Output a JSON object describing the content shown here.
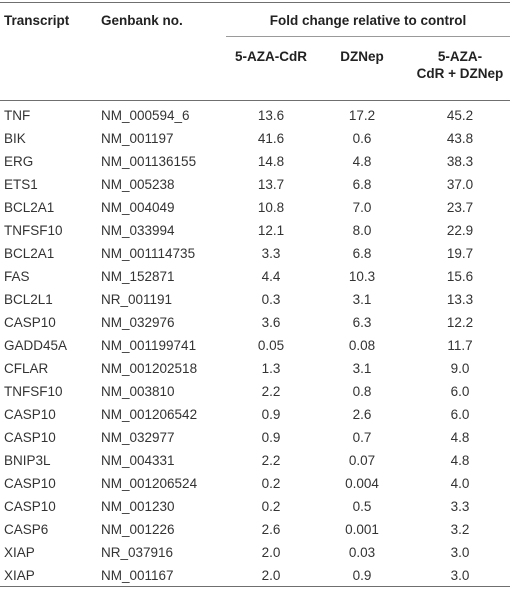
{
  "headers": {
    "transcript": "Transcript",
    "genbank": "Genbank no.",
    "fold_change": "Fold change relative to control",
    "aza": "5-AZA-CdR",
    "dznep": "DZNep",
    "combo_line1": "5-AZA-",
    "combo_line2": "CdR + DZNep"
  },
  "rows": [
    {
      "transcript": "TNF",
      "genbank": "NM_000594_6",
      "aza": "13.6",
      "dznep": "17.2",
      "combo": "45.2"
    },
    {
      "transcript": "BIK",
      "genbank": "NM_001197",
      "aza": "41.6",
      "dznep": "0.6",
      "combo": "43.8"
    },
    {
      "transcript": "ERG",
      "genbank": "NM_001136155",
      "aza": "14.8",
      "dznep": "4.8",
      "combo": "38.3"
    },
    {
      "transcript": "ETS1",
      "genbank": "NM_005238",
      "aza": "13.7",
      "dznep": "6.8",
      "combo": "37.0"
    },
    {
      "transcript": "BCL2A1",
      "genbank": "NM_004049",
      "aza": "10.8",
      "dznep": "7.0",
      "combo": "23.7"
    },
    {
      "transcript": "TNFSF10",
      "genbank": "NM_033994",
      "aza": "12.1",
      "dznep": "8.0",
      "combo": "22.9"
    },
    {
      "transcript": "BCL2A1",
      "genbank": "NM_001114735",
      "aza": "3.3",
      "dznep": "6.8",
      "combo": "19.7"
    },
    {
      "transcript": "FAS",
      "genbank": "NM_152871",
      "aza": "4.4",
      "dznep": "10.3",
      "combo": "15.6"
    },
    {
      "transcript": "BCL2L1",
      "genbank": "NR_001191",
      "aza": "0.3",
      "dznep": "3.1",
      "combo": "13.3"
    },
    {
      "transcript": "CASP10",
      "genbank": "NM_032976",
      "aza": "3.6",
      "dznep": "6.3",
      "combo": "12.2"
    },
    {
      "transcript": "GADD45A",
      "genbank": "NM_001199741",
      "aza": "0.05",
      "dznep": "0.08",
      "combo": "11.7"
    },
    {
      "transcript": "CFLAR",
      "genbank": "NM_001202518",
      "aza": "1.3",
      "dznep": "3.1",
      "combo": "9.0"
    },
    {
      "transcript": "TNFSF10",
      "genbank": "NM_003810",
      "aza": "2.2",
      "dznep": "0.8",
      "combo": "6.0"
    },
    {
      "transcript": "CASP10",
      "genbank": "NM_001206542",
      "aza": "0.9",
      "dznep": "2.6",
      "combo": "6.0"
    },
    {
      "transcript": "CASP10",
      "genbank": "NM_032977",
      "aza": "0.9",
      "dznep": "0.7",
      "combo": "4.8"
    },
    {
      "transcript": "BNIP3L",
      "genbank": "NM_004331",
      "aza": "2.2",
      "dznep": "0.07",
      "combo": "4.8"
    },
    {
      "transcript": "CASP10",
      "genbank": "NM_001206524",
      "aza": "0.2",
      "dznep": "0.004",
      "combo": "4.0"
    },
    {
      "transcript": "CASP10",
      "genbank": "NM_001230",
      "aza": "0.2",
      "dznep": "0.5",
      "combo": "3.3"
    },
    {
      "transcript": "CASP6",
      "genbank": "NM_001226",
      "aza": "2.6",
      "dznep": "0.001",
      "combo": "3.2"
    },
    {
      "transcript": "XIAP",
      "genbank": "NR_037916",
      "aza": "2.0",
      "dznep": "0.03",
      "combo": "3.0"
    },
    {
      "transcript": "XIAP",
      "genbank": "NM_001167",
      "aza": "2.0",
      "dznep": "0.9",
      "combo": "3.0"
    }
  ]
}
